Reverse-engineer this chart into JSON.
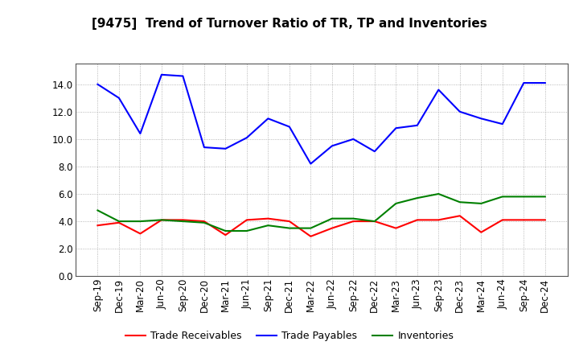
{
  "title": "[9475]  Trend of Turnover Ratio of TR, TP and Inventories",
  "x_labels": [
    "Sep-19",
    "Dec-19",
    "Mar-20",
    "Jun-20",
    "Sep-20",
    "Dec-20",
    "Mar-21",
    "Jun-21",
    "Sep-21",
    "Dec-21",
    "Mar-22",
    "Jun-22",
    "Sep-22",
    "Dec-22",
    "Mar-23",
    "Jun-23",
    "Sep-23",
    "Dec-23",
    "Mar-24",
    "Jun-24",
    "Sep-24",
    "Dec-24"
  ],
  "trade_receivables": [
    3.7,
    3.9,
    3.1,
    4.1,
    4.1,
    4.0,
    3.0,
    4.1,
    4.2,
    4.0,
    2.9,
    3.5,
    4.0,
    4.0,
    3.5,
    4.1,
    4.1,
    4.4,
    3.2,
    4.1,
    4.1,
    4.1
  ],
  "trade_payables": [
    14.0,
    13.0,
    10.4,
    14.7,
    14.6,
    9.4,
    9.3,
    10.1,
    11.5,
    10.9,
    8.2,
    9.5,
    10.0,
    9.1,
    10.8,
    11.0,
    13.6,
    12.0,
    11.5,
    11.1,
    14.1,
    14.1
  ],
  "inventories": [
    4.8,
    4.0,
    4.0,
    4.1,
    4.0,
    3.9,
    3.3,
    3.3,
    3.7,
    3.5,
    3.5,
    4.2,
    4.2,
    4.0,
    5.3,
    5.7,
    6.0,
    5.4,
    5.3,
    5.8,
    5.8,
    5.8
  ],
  "colors": {
    "trade_receivables": "#ff0000",
    "trade_payables": "#0000ff",
    "inventories": "#008000"
  },
  "ylim": [
    0.0,
    15.5
  ],
  "yticks": [
    0.0,
    2.0,
    4.0,
    6.0,
    8.0,
    10.0,
    12.0,
    14.0
  ],
  "background_color": "#ffffff",
  "plot_bg_color": "#ffffff",
  "grid_color": "#999999",
  "legend_labels": [
    "Trade Receivables",
    "Trade Payables",
    "Inventories"
  ],
  "title_fontsize": 11,
  "tick_fontsize": 8.5,
  "linewidth": 1.5
}
